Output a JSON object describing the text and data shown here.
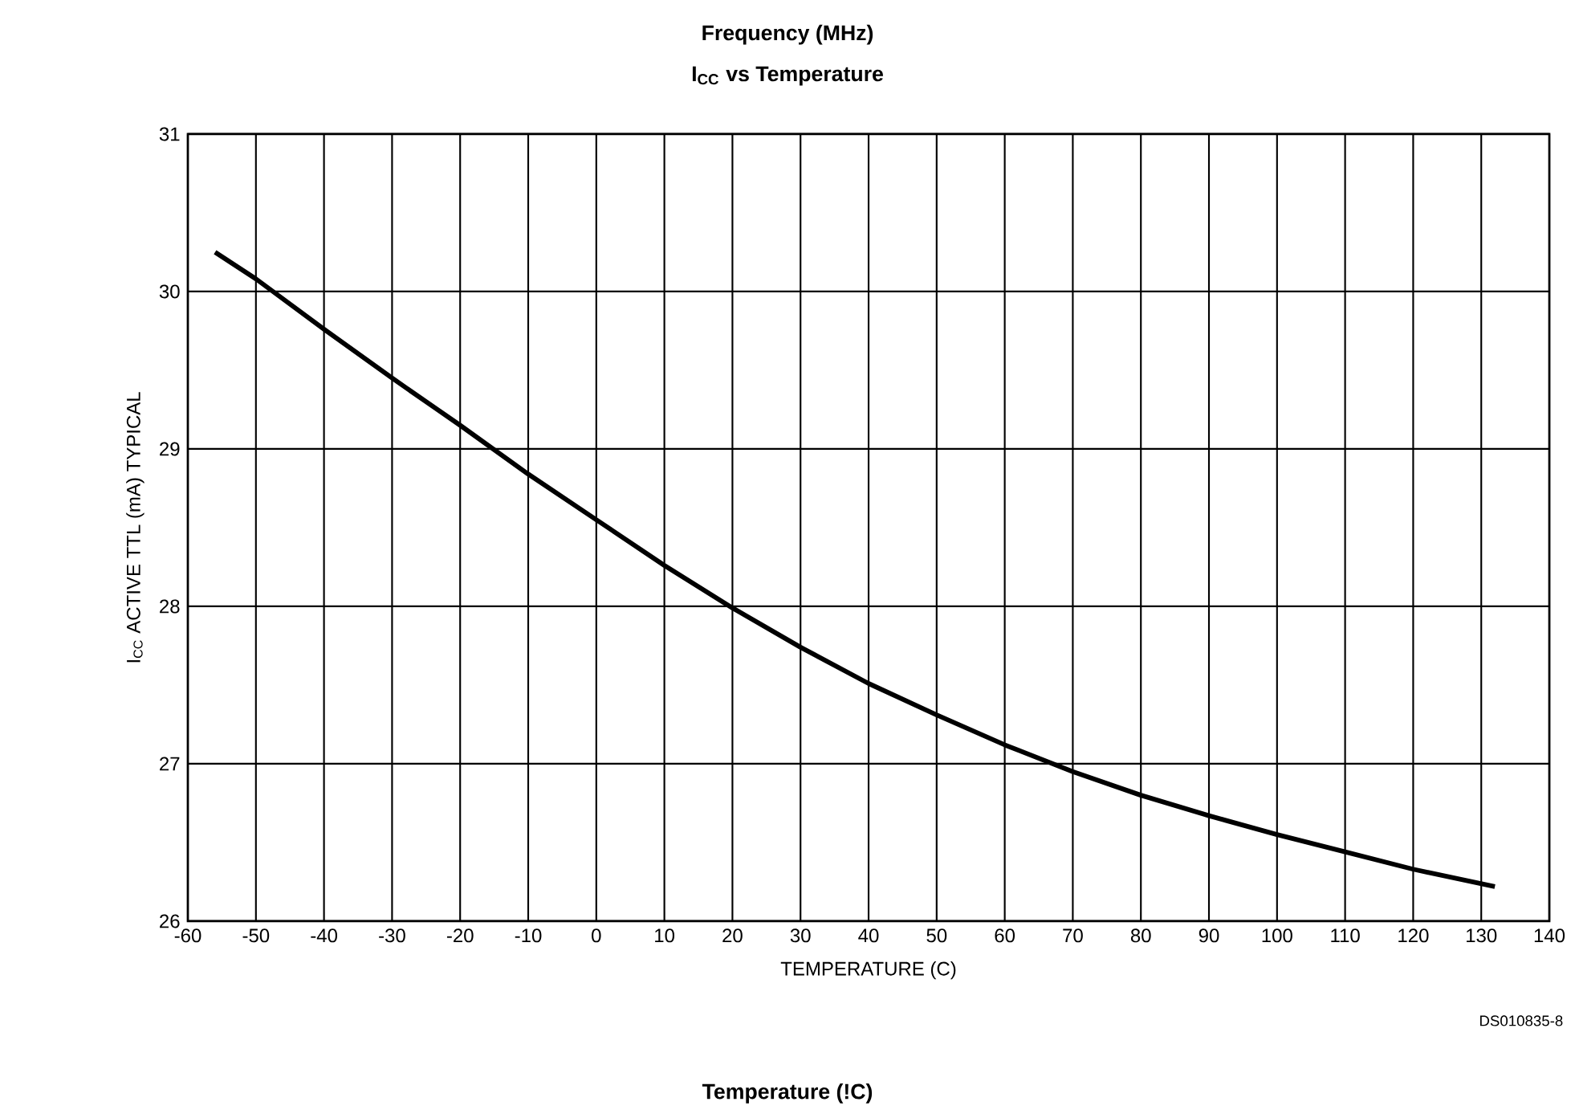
{
  "chart_data": {
    "type": "line",
    "title": "I$_{CC}$ vs Temperature",
    "xlabel": "TEMPERATURE (C)",
    "ylabel": "I$_{CC}$ ACTIVE TTL (mA) TYPICAL",
    "annotations": [
      "Frequency (MHz)",
      "DS010835-8",
      "Temperature (!C)"
    ],
    "x": [
      -56,
      -50,
      -40,
      -30,
      -20,
      -10,
      0,
      10,
      20,
      30,
      40,
      50,
      60,
      70,
      80,
      90,
      100,
      110,
      120,
      132
    ],
    "values": [
      30.25,
      30.08,
      29.76,
      29.45,
      29.15,
      28.84,
      28.55,
      28.26,
      27.99,
      27.74,
      27.51,
      27.31,
      27.12,
      26.95,
      26.8,
      26.67,
      26.55,
      26.44,
      26.33,
      26.22
    ],
    "color": "#000000",
    "xlim": [
      -60,
      140
    ],
    "ylim": [
      26,
      31
    ],
    "xticks": [
      -60,
      -50,
      -40,
      -30,
      -20,
      -10,
      0,
      10,
      20,
      30,
      40,
      50,
      60,
      70,
      80,
      90,
      100,
      110,
      120,
      130,
      140
    ],
    "yticks": [
      26,
      27,
      28,
      29,
      30,
      31
    ],
    "grid": true,
    "marker": "none",
    "line_style": "solid"
  }
}
